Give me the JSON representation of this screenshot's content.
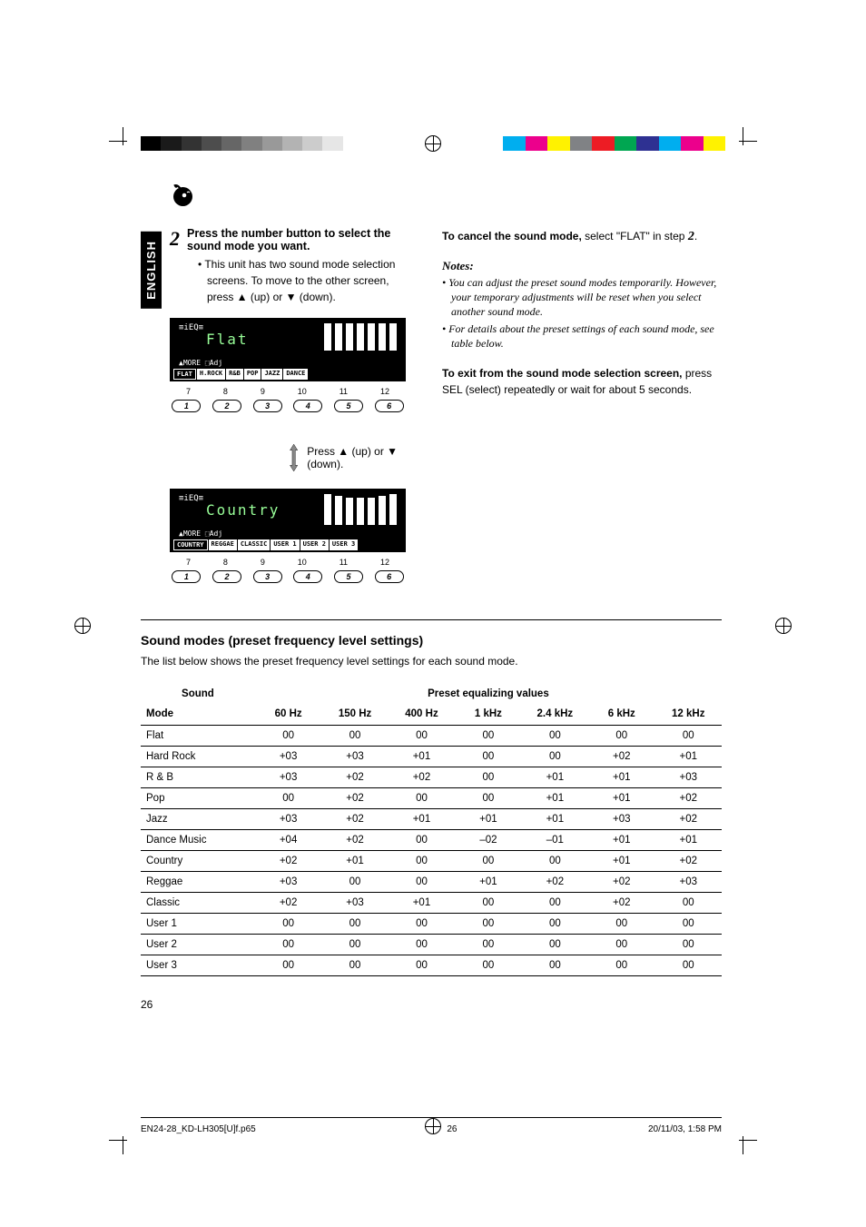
{
  "lang_tab": "ENGLISH",
  "step": {
    "number": "2",
    "heading": "Press the number button to select the sound mode you want.",
    "bullet": "This unit has two sound mode selection screens. To move to the other screen, press ▲ (up) or ▼ (down)."
  },
  "display1": {
    "label": "Flat",
    "tabs": [
      "FLAT",
      "H.ROCK",
      "R&B",
      "POP",
      "JAZZ",
      "DANCE"
    ],
    "nums_top": [
      "7",
      "8",
      "9",
      "10",
      "11",
      "12"
    ],
    "buttons": [
      "1",
      "2",
      "3",
      "4",
      "5",
      "6"
    ]
  },
  "arrow_note": "Press ▲ (up) or ▼ (down).",
  "display2": {
    "label": "Country",
    "tabs": [
      "COUNTRY",
      "REGGAE",
      "CLASSIC",
      "USER 1",
      "USER 2",
      "USER 3"
    ],
    "nums_top": [
      "7",
      "8",
      "9",
      "10",
      "11",
      "12"
    ],
    "buttons": [
      "1",
      "2",
      "3",
      "4",
      "5",
      "6"
    ]
  },
  "right_col": {
    "cancel_bold": "To cancel the sound mode,",
    "cancel_rest": " select \"FLAT\" in step ",
    "cancel_step": "2",
    "cancel_tail": ".",
    "notes_head": "Notes:",
    "notes": [
      "You can adjust the preset sound modes temporarily. However, your temporary adjustments will be reset when you select another sound mode.",
      "For details about the preset settings of each sound mode, see table below."
    ],
    "exit_bold": "To exit from the sound mode selection screen,",
    "exit_rest": " press SEL (select) repeatedly or wait for about 5 seconds."
  },
  "table_section": {
    "heading": "Sound modes (preset frequency level settings)",
    "sub": "The list below shows the preset frequency level settings for each sound mode.",
    "col1_a": "Sound",
    "col1_b": "Mode",
    "group_head": "Preset equalizing values",
    "freq_cols": [
      "60 Hz",
      "150 Hz",
      "400 Hz",
      "1 kHz",
      "2.4 kHz",
      "6 kHz",
      "12 kHz"
    ],
    "rows": [
      {
        "mode": "Flat",
        "v": [
          "00",
          "00",
          "00",
          "00",
          "00",
          "00",
          "00"
        ]
      },
      {
        "mode": "Hard Rock",
        "v": [
          "+03",
          "+03",
          "+01",
          "00",
          "00",
          "+02",
          "+01"
        ]
      },
      {
        "mode": "R & B",
        "v": [
          "+03",
          "+02",
          "+02",
          "00",
          "+01",
          "+01",
          "+03"
        ]
      },
      {
        "mode": "Pop",
        "v": [
          "00",
          "+02",
          "00",
          "00",
          "+01",
          "+01",
          "+02"
        ]
      },
      {
        "mode": "Jazz",
        "v": [
          "+03",
          "+02",
          "+01",
          "+01",
          "+01",
          "+03",
          "+02"
        ]
      },
      {
        "mode": "Dance Music",
        "v": [
          "+04",
          "+02",
          "00",
          "–02",
          "–01",
          "+01",
          "+01"
        ]
      },
      {
        "mode": "Country",
        "v": [
          "+02",
          "+01",
          "00",
          "00",
          "00",
          "+01",
          "+02"
        ]
      },
      {
        "mode": "Reggae",
        "v": [
          "+03",
          "00",
          "00",
          "+01",
          "+02",
          "+02",
          "+03"
        ]
      },
      {
        "mode": "Classic",
        "v": [
          "+02",
          "+03",
          "+01",
          "00",
          "00",
          "+02",
          "00"
        ]
      },
      {
        "mode": "User 1",
        "v": [
          "00",
          "00",
          "00",
          "00",
          "00",
          "00",
          "00"
        ]
      },
      {
        "mode": "User 2",
        "v": [
          "00",
          "00",
          "00",
          "00",
          "00",
          "00",
          "00"
        ]
      },
      {
        "mode": "User 3",
        "v": [
          "00",
          "00",
          "00",
          "00",
          "00",
          "00",
          "00"
        ]
      }
    ]
  },
  "page_num": "26",
  "footer": {
    "file": "EN24-28_KD-LH305[U]f.p65",
    "page": "26",
    "date": "20/11/03, 1:58 PM"
  },
  "colors": {
    "grayscale": [
      "#000000",
      "#1a1a1a",
      "#333333",
      "#4d4d4d",
      "#666666",
      "#808080",
      "#999999",
      "#b3b3b3",
      "#cccccc",
      "#e6e6e6",
      "#ffffff"
    ],
    "colorbar": [
      "#00aeef",
      "#ec008c",
      "#fff200",
      "#808285",
      "#ed1c24",
      "#00a651",
      "#2e3192",
      "#00aeef",
      "#ec008c",
      "#fff200"
    ]
  }
}
